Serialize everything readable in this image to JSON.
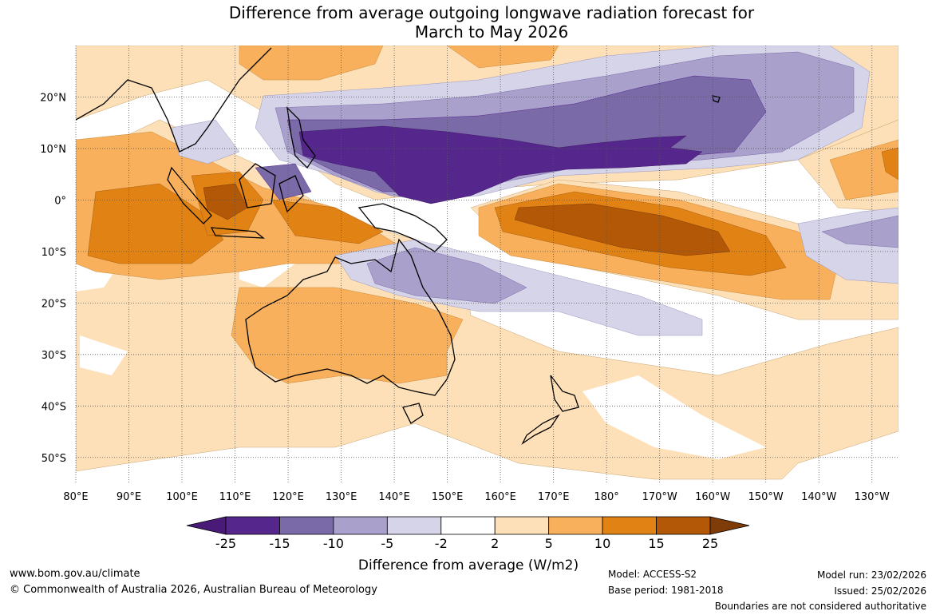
{
  "chart_data": {
    "type": "heatmap",
    "title_line1": "Difference from average outgoing longwave radiation forecast for",
    "title_line2": "March to May 2026",
    "map_extent": {
      "lon_min": 80,
      "lon_max": 235,
      "lat_min": -55,
      "lat_max": 30
    },
    "x_ticks": [
      {
        "lon": 80,
        "label": "80°E"
      },
      {
        "lon": 90,
        "label": "90°E"
      },
      {
        "lon": 100,
        "label": "100°E"
      },
      {
        "lon": 110,
        "label": "110°E"
      },
      {
        "lon": 120,
        "label": "120°E"
      },
      {
        "lon": 130,
        "label": "130°E"
      },
      {
        "lon": 140,
        "label": "140°E"
      },
      {
        "lon": 150,
        "label": "150°E"
      },
      {
        "lon": 160,
        "label": "160°E"
      },
      {
        "lon": 170,
        "label": "170°E"
      },
      {
        "lon": 180,
        "label": "180°"
      },
      {
        "lon": 190,
        "label": "170°W"
      },
      {
        "lon": 200,
        "label": "160°W"
      },
      {
        "lon": 210,
        "label": "150°W"
      },
      {
        "lon": 220,
        "label": "140°W"
      },
      {
        "lon": 230,
        "label": "130°W"
      }
    ],
    "y_ticks": [
      {
        "lat": 20,
        "label": "20°N"
      },
      {
        "lat": 10,
        "label": "10°N"
      },
      {
        "lat": 0,
        "label": "0°"
      },
      {
        "lat": -10,
        "label": "10°S"
      },
      {
        "lat": -20,
        "label": "20°S"
      },
      {
        "lat": -30,
        "label": "30°S"
      },
      {
        "lat": -40,
        "label": "40°S"
      },
      {
        "lat": -50,
        "label": "50°S"
      }
    ],
    "colorbar": {
      "label": "Difference from average (W/m2)",
      "tick_labels": [
        "-25",
        "-15",
        "-10",
        "-5",
        "-2",
        "2",
        "5",
        "10",
        "15",
        "25"
      ],
      "colors": [
        "#4a1a78",
        "#55268c",
        "#7a6aa8",
        "#a9a1cb",
        "#d6d4e8",
        "#ffffff",
        "#fde0b7",
        "#f8b05c",
        "#e08214",
        "#b35806",
        "#7f3b08"
      ]
    }
  },
  "footer": {
    "website": "www.bom.gov.au/climate",
    "copyright": "© Commonwealth of Australia 2026, Australian Bureau of Meteorology",
    "model": "Model: ACCESS-S2",
    "base_period": "Base period: 1981-2018",
    "model_run": "Model run: 23/02/2026",
    "issued": "Issued: 25/02/2026",
    "disclaimer": "Boundaries are not considered authoritative"
  }
}
